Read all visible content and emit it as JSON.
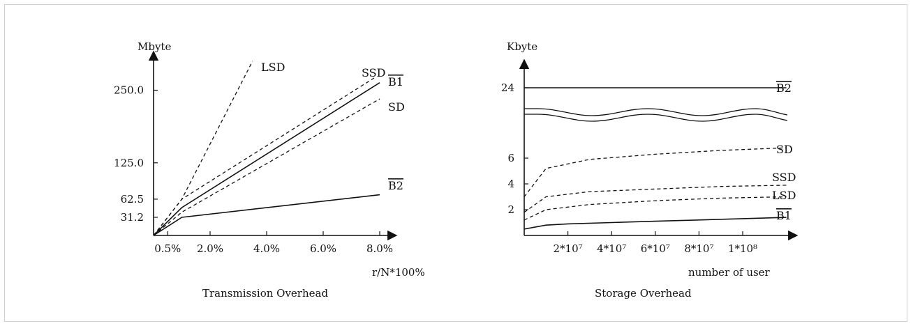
{
  "chart_data": [
    {
      "type": "line",
      "title": "Transmission Overhead",
      "ylabel": "Mbyte",
      "xlabel": "r/N*100%",
      "x_ticks": [
        "0.5%",
        "2.0%",
        "4.0%",
        "6.0%",
        "8.0%"
      ],
      "y_ticks": [
        "31.2",
        "62.5",
        "125.0",
        "250.0"
      ],
      "series": [
        {
          "name": "LSD",
          "style": "dashed",
          "x": [
            0.0,
            1.0,
            3.5
          ],
          "y": [
            0,
            62.5,
            300
          ]
        },
        {
          "name": "SSD",
          "style": "dashed",
          "x": [
            0.0,
            1.0,
            7.8
          ],
          "y": [
            0,
            62.5,
            271
          ]
        },
        {
          "name": "B1",
          "overline": true,
          "style": "solid",
          "x": [
            0.0,
            1.0,
            8.0
          ],
          "y": [
            0,
            48,
            263
          ]
        },
        {
          "name": "SD",
          "style": "dashed",
          "x": [
            0.0,
            1.0,
            8.0
          ],
          "y": [
            0,
            40,
            235
          ]
        },
        {
          "name": "B2",
          "overline": true,
          "style": "solid",
          "x": [
            0.0,
            1.0,
            8.0
          ],
          "y": [
            0,
            31.2,
            70
          ]
        }
      ]
    },
    {
      "type": "line",
      "title": "Storage Overhead",
      "ylabel": "Kbyte",
      "xlabel": "number of user",
      "x_ticks": [
        "2*10⁷",
        "4*10⁷",
        "6*10⁷",
        "8*10⁷",
        "1*10⁸"
      ],
      "y_ticks": [
        "2",
        "4",
        "6",
        "24"
      ],
      "axis_break": true,
      "series": [
        {
          "name": "B2",
          "overline": true,
          "style": "solid",
          "x": [
            0,
            120000000.0
          ],
          "y": [
            24,
            24
          ]
        },
        {
          "name": "SD",
          "style": "dashed",
          "x": [
            0,
            10000000.0,
            30000000.0,
            60000000.0,
            90000000.0,
            120000000.0
          ],
          "y": [
            3.0,
            5.2,
            5.9,
            6.3,
            6.6,
            6.8
          ]
        },
        {
          "name": "SSD",
          "style": "dashed",
          "x": [
            0,
            10000000.0,
            30000000.0,
            60000000.0,
            90000000.0,
            120000000.0
          ],
          "y": [
            1.8,
            3.0,
            3.4,
            3.6,
            3.8,
            3.9
          ]
        },
        {
          "name": "LSD",
          "style": "dashed",
          "x": [
            0,
            10000000.0,
            30000000.0,
            60000000.0,
            90000000.0,
            120000000.0
          ],
          "y": [
            1.2,
            2.0,
            2.4,
            2.7,
            2.9,
            3.0
          ]
        },
        {
          "name": "B1",
          "overline": true,
          "style": "solid",
          "x": [
            0,
            10000000.0,
            20000000.0,
            40000000.0,
            60000000.0,
            80000000.0,
            100000000.0,
            120000000.0
          ],
          "y": [
            0.5,
            0.8,
            0.9,
            1.0,
            1.1,
            1.2,
            1.3,
            1.4
          ]
        }
      ]
    }
  ]
}
